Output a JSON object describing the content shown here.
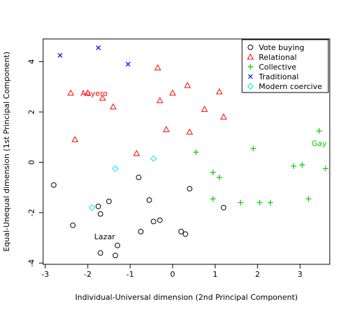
{
  "chart_data": {
    "type": "scatter",
    "xlabel": "Individual-Universal dimension (2nd Principal Component)",
    "ylabel": "Equal-Unequal dimension (1st Principal Component)",
    "xlim": [
      -3.05,
      3.7
    ],
    "ylim": [
      -4.05,
      4.9
    ],
    "x_ticks": [
      -3,
      -2,
      -1,
      0,
      1,
      2,
      3
    ],
    "y_ticks": [
      -4,
      -2,
      0,
      2,
      4
    ],
    "grid": false,
    "legend_position": "top-right",
    "series": [
      {
        "name": "Vote buying",
        "marker": "circle",
        "color": "#000000",
        "points": [
          [
            -2.8,
            -0.9
          ],
          [
            -2.35,
            -2.5
          ],
          [
            -1.75,
            -1.75
          ],
          [
            -1.7,
            -2.05
          ],
          [
            -1.5,
            -1.55
          ],
          [
            -1.7,
            -3.6
          ],
          [
            -1.3,
            -3.3
          ],
          [
            -1.35,
            -3.7
          ],
          [
            -0.8,
            -0.6
          ],
          [
            -0.55,
            -1.5
          ],
          [
            -0.45,
            -2.35
          ],
          [
            -0.3,
            -2.3
          ],
          [
            -0.75,
            -2.75
          ],
          [
            0.2,
            -2.75
          ],
          [
            0.3,
            -2.85
          ],
          [
            0.4,
            -1.05
          ],
          [
            1.2,
            -1.8
          ]
        ]
      },
      {
        "name": "Relational",
        "marker": "triangle",
        "color": "#ff0000",
        "points": [
          [
            -2.4,
            2.75
          ],
          [
            -2.3,
            0.9
          ],
          [
            -2.0,
            2.75
          ],
          [
            -1.65,
            2.55
          ],
          [
            -1.4,
            2.2
          ],
          [
            -0.85,
            0.35
          ],
          [
            -0.35,
            3.75
          ],
          [
            -0.3,
            2.45
          ],
          [
            -0.15,
            1.3
          ],
          [
            0.0,
            2.75
          ],
          [
            0.35,
            3.05
          ],
          [
            0.4,
            1.2
          ],
          [
            0.75,
            2.1
          ],
          [
            1.1,
            2.8
          ],
          [
            1.2,
            1.8
          ]
        ]
      },
      {
        "name": "Collective",
        "marker": "plus",
        "color": "#00cc00",
        "points": [
          [
            0.55,
            0.4
          ],
          [
            0.95,
            -0.4
          ],
          [
            1.1,
            -0.6
          ],
          [
            0.95,
            -1.45
          ],
          [
            1.6,
            -1.6
          ],
          [
            1.9,
            0.55
          ],
          [
            2.05,
            -1.6
          ],
          [
            2.3,
            -1.6
          ],
          [
            2.85,
            -0.15
          ],
          [
            3.05,
            -0.1
          ],
          [
            3.2,
            -1.45
          ],
          [
            3.45,
            1.25
          ],
          [
            3.6,
            -0.25
          ]
        ]
      },
      {
        "name": "Traditional",
        "marker": "cross",
        "color": "#0000ff",
        "points": [
          [
            -2.65,
            4.25
          ],
          [
            -1.75,
            4.55
          ],
          [
            -1.05,
            3.9
          ]
        ]
      },
      {
        "name": "Modern coercive",
        "marker": "diamond",
        "color": "#00e5ee",
        "points": [
          [
            -1.9,
            -1.8
          ],
          [
            -1.35,
            -0.25
          ],
          [
            -0.45,
            0.15
          ]
        ]
      }
    ],
    "annotations": [
      {
        "text": "Auyero",
        "x": -1.85,
        "y": 2.75,
        "color": "#ff0000"
      },
      {
        "text": "Gay",
        "x": 3.45,
        "y": 0.75,
        "color": "#00cc00"
      },
      {
        "text": "Lazar",
        "x": -1.6,
        "y": -2.95,
        "color": "#000000"
      }
    ]
  }
}
